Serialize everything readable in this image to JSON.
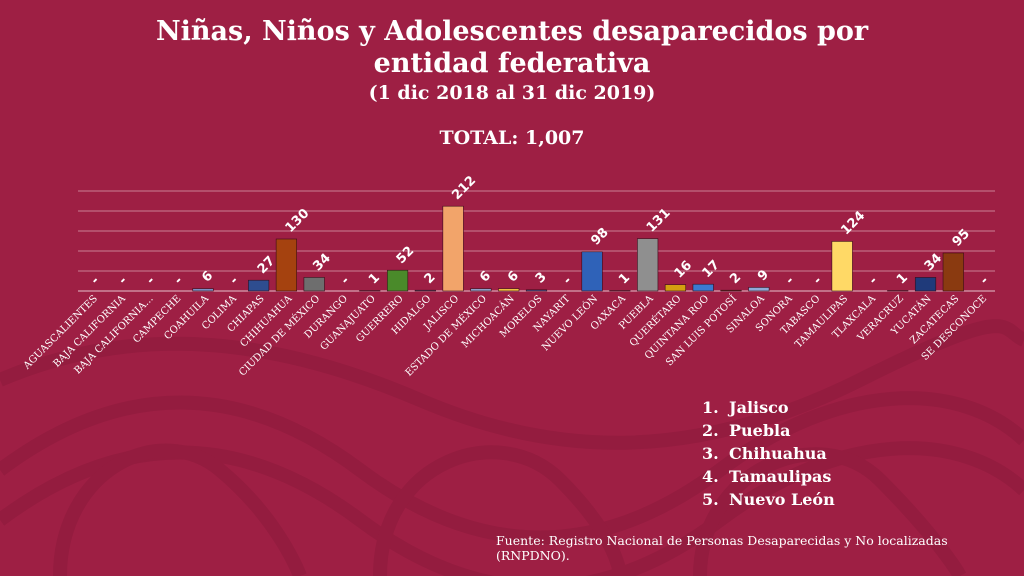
{
  "title": "Niñas, Niños y Adolescentes desaparecidos por entidad federativa",
  "subtitle": "(1 dic 2018 al 31 dic 2019)",
  "total": "TOTAL: 1,007",
  "ranking": [
    {
      "num": "1.",
      "label": "Jalisco"
    },
    {
      "num": "2.",
      "label": "Puebla"
    },
    {
      "num": "3.",
      "label": "Chihuahua"
    },
    {
      "num": "4.",
      "label": "Tamaulipas"
    },
    {
      "num": "5.",
      "label": "Nuevo León"
    }
  ],
  "source": "Fuente: Registro Nacional de Personas Desaparecidas y No localizadas (RNPDNO).",
  "colors": {
    "background": "#9e1f44",
    "gridline": "#d8a0b0",
    "text": "#ffffff"
  },
  "chart_data": {
    "type": "bar",
    "grid": true,
    "ylim": [
      0,
      250
    ],
    "categories": [
      "AGUASCALIENTES",
      "BAJA CALIFORNIA",
      "BAJA CALIFORNIA...",
      "CAMPECHE",
      "COAHUILA",
      "COLIMA",
      "CHIAPAS",
      "CHIHUAHUA",
      "CIUDAD DE MÉXICO",
      "DURANGO",
      "GUANAJUATO",
      "GUERRERO",
      "HIDALGO",
      "JALISCO",
      "ESTADO DE MÉXICO",
      "MICHOACÁN",
      "MORELOS",
      "NAYARIT",
      "NUEVO LEÓN",
      "OAXACA",
      "PUEBLA",
      "QUERÉTARO",
      "QUINTANA ROO",
      "SAN LUIS POTOSÍ",
      "SINALOA",
      "SONORA",
      "TABASCO",
      "TAMAULIPAS",
      "TLAXCALA",
      "VERACRUZ",
      "YUCATÁN",
      "ZACATECAS",
      "SE DESCONOCE"
    ],
    "values": [
      0,
      0,
      0,
      0,
      6,
      0,
      27,
      130,
      34,
      0,
      1,
      52,
      2,
      212,
      6,
      6,
      3,
      0,
      98,
      1,
      131,
      16,
      17,
      2,
      9,
      0,
      0,
      124,
      0,
      1,
      34,
      95,
      0
    ],
    "labels": [
      "-",
      "-",
      "-",
      "-",
      "6",
      "-",
      "27",
      "130",
      "34",
      "-",
      "1",
      "52",
      "2",
      "212",
      "6",
      "6",
      "3",
      "-",
      "98",
      "1",
      "131",
      "16",
      "17",
      "2",
      "9",
      "-",
      "-",
      "124",
      "-",
      "1",
      "34",
      "95",
      "-"
    ],
    "bar_colors": [
      "#6a7fb0",
      "#6a7fb0",
      "#6a7fb0",
      "#6a7fb0",
      "#7b8fc4",
      "#6a7fb0",
      "#2e4d8f",
      "#a5420f",
      "#6e6e6e",
      "#6a7fb0",
      "#caa21c",
      "#4a8a2a",
      "#6a7fb0",
      "#f2a46a",
      "#8fa0c8",
      "#f0c040",
      "#4a5a9a",
      "#6a7fb0",
      "#2f62b8",
      "#aaaaaa",
      "#8f8f8f",
      "#d4a010",
      "#3a7ad0",
      "#9a4a20",
      "#8faad8",
      "#6a7fb0",
      "#6a7fb0",
      "#ffd966",
      "#6a7fb0",
      "#6a7fb0",
      "#1f3a7a",
      "#8a3a10",
      "#6a7fb0"
    ]
  }
}
